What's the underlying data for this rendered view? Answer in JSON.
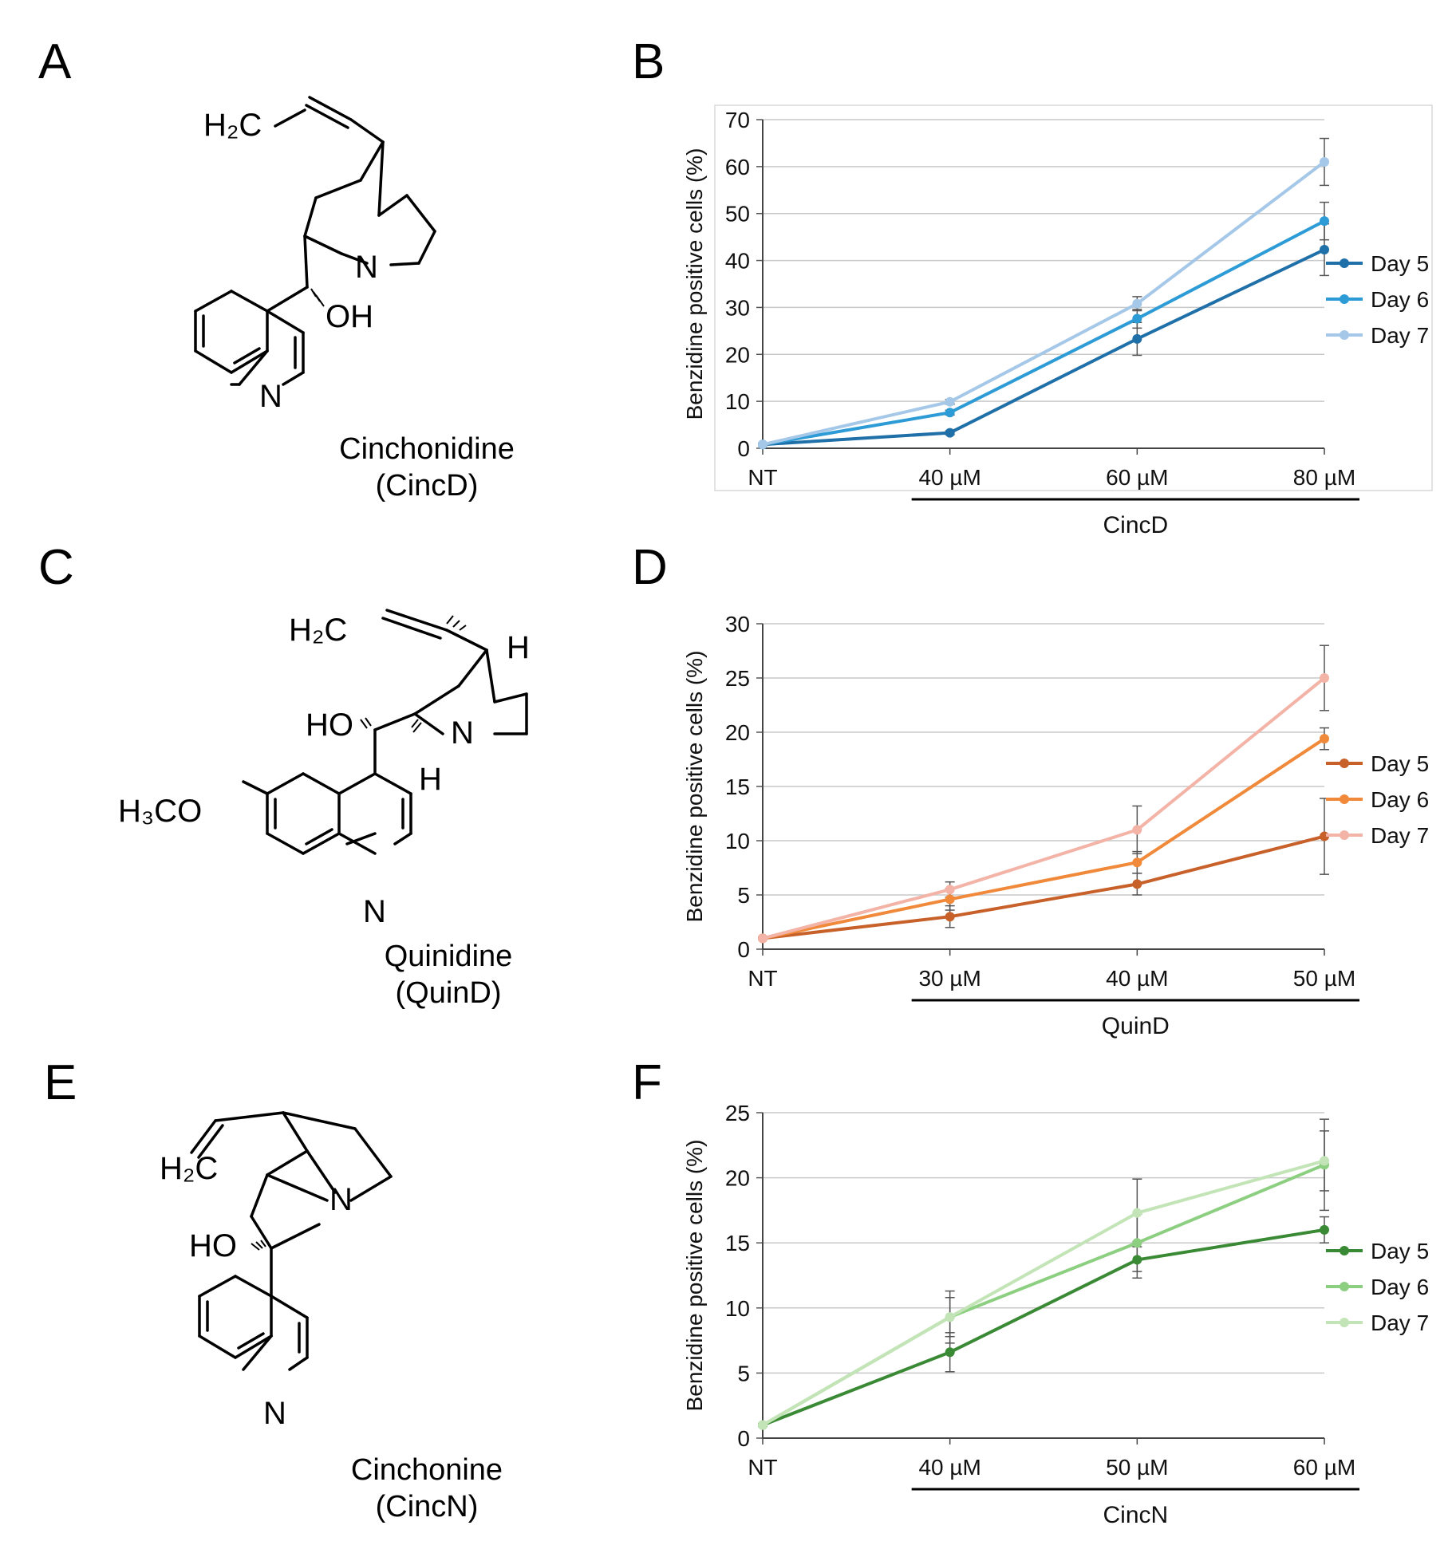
{
  "panels": {
    "A": "A",
    "B": "B",
    "C": "C",
    "D": "D",
    "E": "E",
    "F": "F"
  },
  "molecules": [
    {
      "name": "Cinchonidine",
      "abbr": "(CincD)",
      "atoms": {
        "h2c": "H₂C",
        "n_bridge": "N",
        "oh": "OH",
        "n_ring": "N"
      }
    },
    {
      "name": "Quinidine",
      "abbr": "(QuinD)",
      "atoms": {
        "h2c": "H₂C",
        "h_top": "H",
        "n_bridge": "N",
        "ho": "HO",
        "h_bottom": "H",
        "h3co": "H₃CO",
        "n_ring": "N"
      }
    },
    {
      "name": "Cinchonine",
      "abbr": "(CincN)",
      "atoms": {
        "h2c": "H₂C",
        "n_bridge": "N",
        "ho": "HO",
        "n_ring": "N"
      }
    }
  ],
  "chart_data": [
    {
      "type": "line",
      "panel": "B",
      "categories": [
        "NT",
        "40 µM",
        "60 µM",
        "80 µM"
      ],
      "xlabel": "CincD",
      "ylabel": "Benzidine positive cells (%)",
      "ylim": [
        0,
        70
      ],
      "yticks": [
        0,
        10,
        20,
        30,
        40,
        50,
        60,
        70
      ],
      "grid": true,
      "legend_position": "right",
      "series": [
        {
          "name": "Day 5",
          "color": "#1f6fa8",
          "values": [
            0.8,
            3.3,
            23.3,
            42.3
          ],
          "errors": [
            0.2,
            0.4,
            3.5,
            5.5
          ]
        },
        {
          "name": "Day 6",
          "color": "#2d9bd6",
          "values": [
            0.8,
            7.6,
            27.6,
            48.4
          ],
          "errors": [
            0.2,
            0.5,
            2.0,
            4.0
          ]
        },
        {
          "name": "Day 7",
          "color": "#a5c8e8",
          "values": [
            0.8,
            9.9,
            30.8,
            61.0
          ],
          "errors": [
            0.2,
            0.5,
            1.5,
            5.0
          ]
        }
      ]
    },
    {
      "type": "line",
      "panel": "D",
      "categories": [
        "NT",
        "30 µM",
        "40 µM",
        "50 µM"
      ],
      "xlabel": "QuinD",
      "ylabel": "Benzidine positive cells (%)",
      "ylim": [
        0,
        30
      ],
      "yticks": [
        0,
        5,
        10,
        15,
        20,
        25,
        30
      ],
      "grid": true,
      "legend_position": "right",
      "series": [
        {
          "name": "Day 5",
          "color": "#c8602a",
          "values": [
            1.0,
            3.0,
            6.0,
            10.4
          ],
          "errors": [
            0.1,
            1.0,
            1.0,
            3.5
          ]
        },
        {
          "name": "Day 6",
          "color": "#f0893a",
          "values": [
            1.0,
            4.6,
            8.0,
            19.4
          ],
          "errors": [
            0.1,
            1.0,
            1.0,
            1.0
          ]
        },
        {
          "name": "Day 7",
          "color": "#f3b3a6",
          "values": [
            1.0,
            5.5,
            11.0,
            25.0
          ],
          "errors": [
            0.1,
            0.7,
            2.2,
            3.0
          ]
        }
      ]
    },
    {
      "type": "line",
      "panel": "F",
      "categories": [
        "NT",
        "40 µM",
        "50 µM",
        "60 µM"
      ],
      "xlabel": "CincN",
      "ylabel": "Benzidine positive cells (%)",
      "ylim": [
        0,
        25
      ],
      "yticks": [
        0,
        5,
        10,
        15,
        20,
        25
      ],
      "grid": true,
      "legend_position": "right",
      "series": [
        {
          "name": "Day 5",
          "color": "#3a8a35",
          "values": [
            1.0,
            6.6,
            13.7,
            16.0
          ],
          "errors": [
            0.1,
            1.5,
            1.4,
            1.0
          ]
        },
        {
          "name": "Day 6",
          "color": "#8ccf80",
          "values": [
            1.0,
            9.3,
            15.0,
            21.0
          ],
          "errors": [
            0.1,
            2.0,
            2.2,
            3.5
          ]
        },
        {
          "name": "Day 7",
          "color": "#c2e4b6",
          "values": [
            1.0,
            9.3,
            17.3,
            21.3
          ],
          "errors": [
            0.1,
            1.5,
            2.6,
            2.3
          ]
        }
      ]
    }
  ]
}
